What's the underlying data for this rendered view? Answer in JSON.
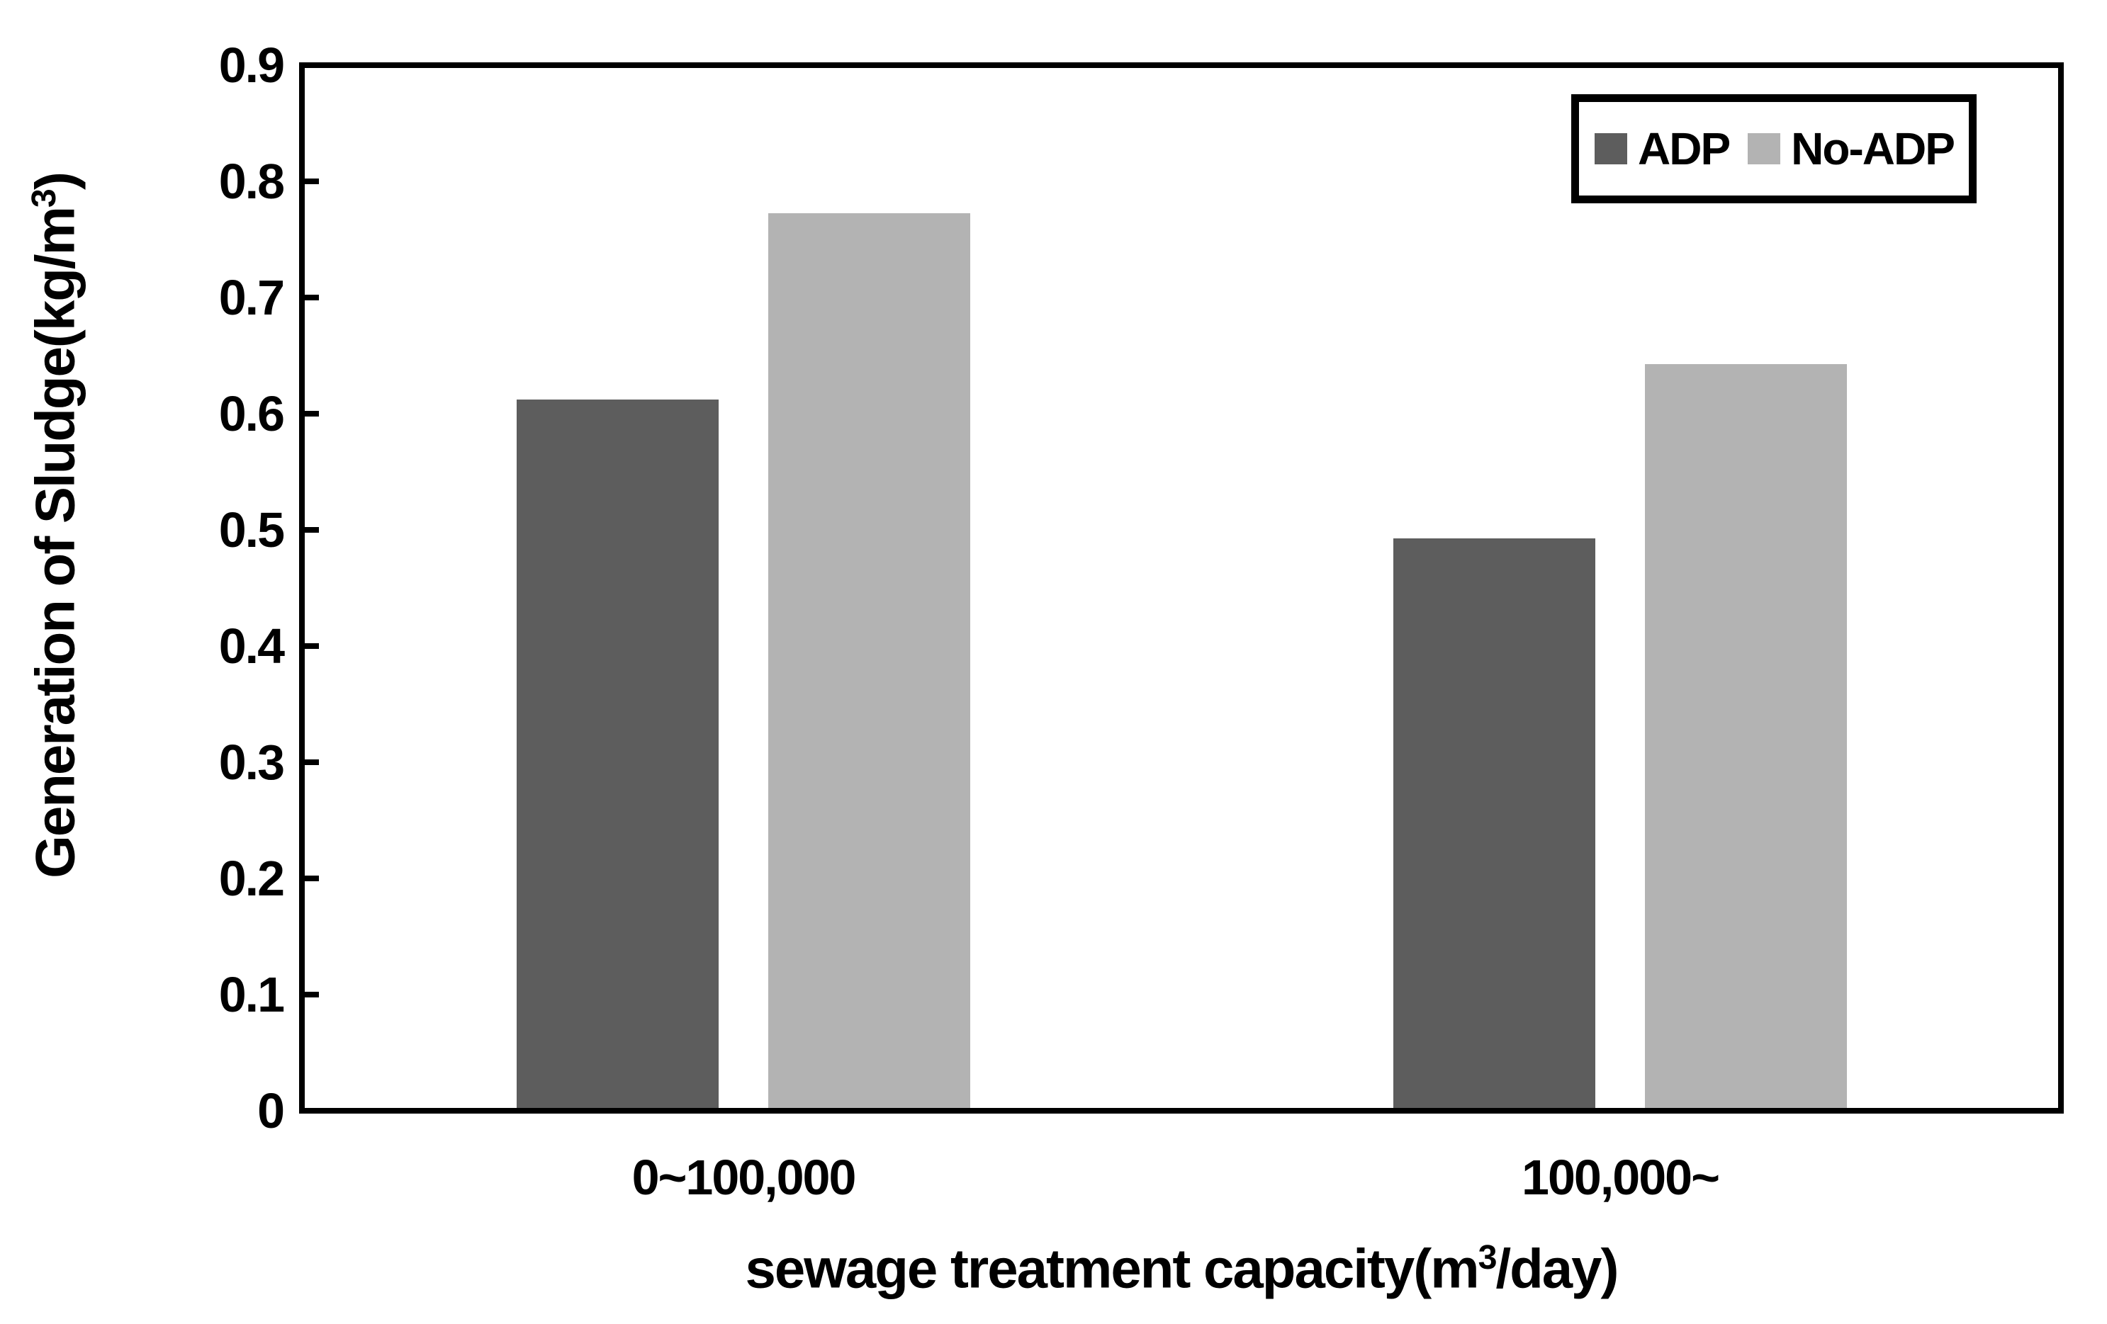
{
  "chart": {
    "background_color": "#ffffff",
    "frame_color": "#000000",
    "ylabel_parts": {
      "prefix": "Generation of Sludge(kg/m",
      "sup": "3",
      "suffix": ")"
    },
    "xlabel_parts": {
      "prefix": "sewage treatment capacity(m",
      "sup": "3",
      "suffix": "/day)"
    }
  },
  "chart_data": {
    "type": "bar",
    "categories": [
      "0~100,000",
      "100,000~"
    ],
    "series": [
      {
        "name": "ADP",
        "color": "#5d5d5d",
        "values": [
          0.61,
          0.49
        ]
      },
      {
        "name": "No-ADP",
        "color": "#b3b3b3",
        "values": [
          0.77,
          0.64
        ]
      }
    ],
    "title": "",
    "xlabel": "sewage treatment capacity(m³/day)",
    "ylabel": "Generation of Sludge(kg/m³)",
    "ylim": [
      0,
      0.9
    ],
    "ytick_step": 0.1,
    "yticks": [
      "0.9",
      "0.8",
      "0.7",
      "0.6",
      "0.5",
      "0.4",
      "0.3",
      "0.2",
      "0.1",
      "0"
    ],
    "grid": false,
    "legend_position": "top-right",
    "bar_edge": "none"
  }
}
